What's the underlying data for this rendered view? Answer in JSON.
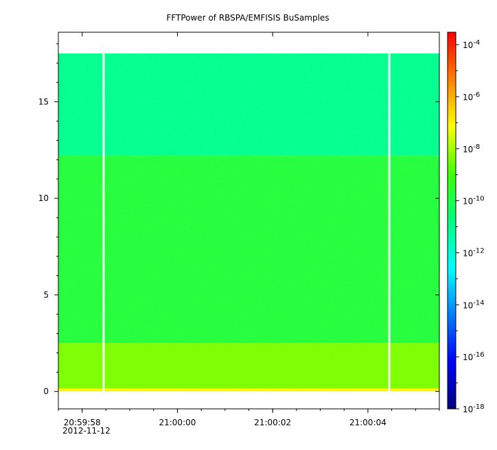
{
  "chart_data": {
    "type": "heatmap",
    "title": "FFTPower of RBSPA/EMFISIS  BuSamples",
    "xlabel": "",
    "ylabel": "",
    "x_date_label": "2012-11-12",
    "x_ticks": [
      "20:59:58",
      "21:00:00",
      "21:00:02",
      "21:00:04"
    ],
    "x_range_seconds": [
      "20:59:57.5",
      "21:00:05.5"
    ],
    "ylim": [
      -0.9,
      18.6
    ],
    "y_ticks": [
      0,
      5,
      10,
      15
    ],
    "y_scale": "linear",
    "data_y_range": [
      0,
      17.5
    ],
    "gaps_at": [
      "20:59:58.45",
      "21:00:04.45"
    ],
    "colorbar": {
      "scale": "log",
      "range": [
        1e-18,
        0.0003
      ],
      "ticks": [
        {
          "value": -18,
          "label_base": "10",
          "label_exp": "-18"
        },
        {
          "value": -16,
          "label_base": "10",
          "label_exp": "-16"
        },
        {
          "value": -14,
          "label_base": "10",
          "label_exp": "-14"
        },
        {
          "value": -12,
          "label_base": "10",
          "label_exp": "-12"
        },
        {
          "value": -10,
          "label_base": "10",
          "label_exp": "-10"
        },
        {
          "value": -8,
          "label_base": "10",
          "label_exp": "-8"
        },
        {
          "value": -6,
          "label_base": "10",
          "label_exp": "-6"
        },
        {
          "value": -4,
          "label_base": "10",
          "label_exp": "-4"
        }
      ],
      "colors": [
        "#00007f",
        "#0000ff",
        "#007fff",
        "#00ffff",
        "#00ff7f",
        "#3fff00",
        "#ffff00",
        "#ff7f00",
        "#ff0000"
      ]
    },
    "bands": [
      {
        "y": [
          12.2,
          17.5
        ],
        "log_power": -11.0
      },
      {
        "y": [
          2.5,
          12.2
        ],
        "log_power": -9.8
      },
      {
        "y": [
          0.15,
          2.5
        ],
        "log_power": -8.4
      },
      {
        "y": [
          0,
          0.15
        ],
        "log_power": -7.0
      }
    ],
    "grid": false,
    "legend": "none"
  }
}
